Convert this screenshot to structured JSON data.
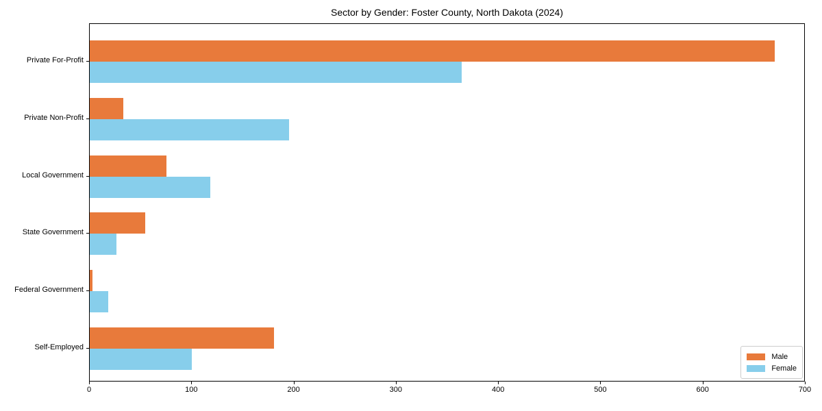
{
  "chart_data": {
    "type": "bar",
    "orientation": "horizontal",
    "title": "Sector by Gender: Foster County, North Dakota (2024)",
    "categories": [
      "Private For-Profit",
      "Private Non-Profit",
      "Local Government",
      "State Government",
      "Federal Government",
      "Self-Employed"
    ],
    "series": [
      {
        "name": "Male",
        "color": "#E87A3B",
        "values": [
          670,
          33,
          75,
          54,
          3,
          180
        ]
      },
      {
        "name": "Female",
        "color": "#87CEEB",
        "values": [
          364,
          195,
          118,
          26,
          18,
          100
        ]
      }
    ],
    "xlabel": "",
    "ylabel": "",
    "xlim": [
      0,
      700
    ],
    "xticks": [
      0,
      100,
      200,
      300,
      400,
      500,
      600,
      700
    ],
    "grid": false,
    "legend_position": "lower right",
    "axis_color": "#000000",
    "background_color": "#ffffff"
  }
}
